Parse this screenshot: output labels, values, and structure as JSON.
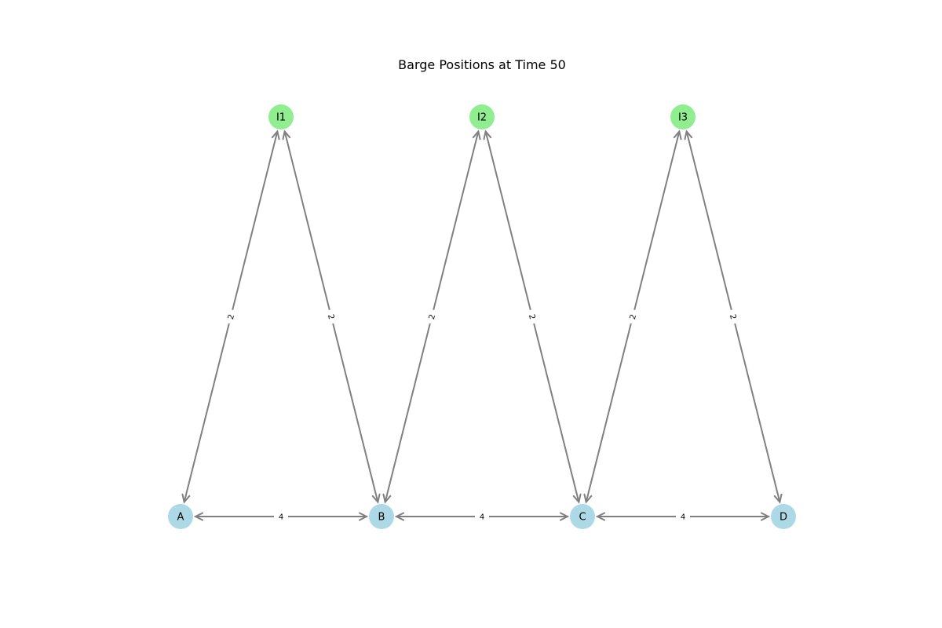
{
  "title": "Barge Positions at Time 50",
  "colors": {
    "port_node": "#add8e6",
    "intermediate_node": "#90ee90",
    "edge": "#808080",
    "background": "#ffffff"
  },
  "nodes": [
    {
      "id": "A",
      "label": "A",
      "kind": "port"
    },
    {
      "id": "B",
      "label": "B",
      "kind": "port"
    },
    {
      "id": "C",
      "label": "C",
      "kind": "port"
    },
    {
      "id": "D",
      "label": "D",
      "kind": "port"
    },
    {
      "id": "I1",
      "label": "I1",
      "kind": "intermediate"
    },
    {
      "id": "I2",
      "label": "I2",
      "kind": "intermediate"
    },
    {
      "id": "I3",
      "label": "I3",
      "kind": "intermediate"
    }
  ],
  "edges": [
    {
      "from": "A",
      "to": "I1",
      "weight": "2",
      "bidirectional": true
    },
    {
      "from": "I1",
      "to": "B",
      "weight": "2",
      "bidirectional": true
    },
    {
      "from": "B",
      "to": "I2",
      "weight": "2",
      "bidirectional": true
    },
    {
      "from": "I2",
      "to": "C",
      "weight": "2",
      "bidirectional": true
    },
    {
      "from": "C",
      "to": "I3",
      "weight": "2",
      "bidirectional": true
    },
    {
      "from": "I3",
      "to": "D",
      "weight": "2",
      "bidirectional": true
    },
    {
      "from": "A",
      "to": "B",
      "weight": "4",
      "bidirectional": true
    },
    {
      "from": "B",
      "to": "C",
      "weight": "4",
      "bidirectional": true
    },
    {
      "from": "C",
      "to": "D",
      "weight": "4",
      "bidirectional": true
    }
  ]
}
